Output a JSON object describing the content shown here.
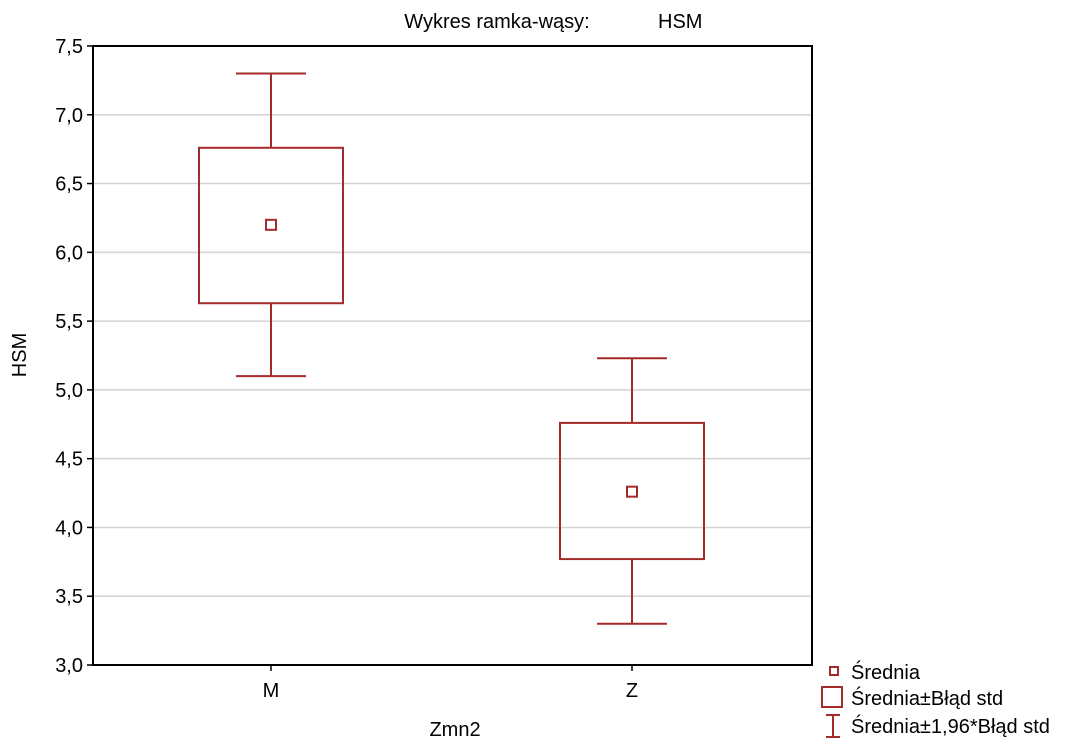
{
  "chart_data": {
    "type": "box",
    "title": "Wykres ramka-wąsy:",
    "variable": "HSM",
    "xlabel": "Zmn2",
    "ylabel": "HSM",
    "ylim": [
      3.0,
      7.5
    ],
    "ytick_labels": [
      "3,0",
      "3,5",
      "4,0",
      "4,5",
      "5,0",
      "5,5",
      "6,0",
      "6,5",
      "7,0",
      "7,5"
    ],
    "ytick_values": [
      3.0,
      3.5,
      4.0,
      4.5,
      5.0,
      5.5,
      6.0,
      6.5,
      7.0,
      7.5
    ],
    "grid": true,
    "legend_position": "bottom-right",
    "series_color": "#a52a2a",
    "categories": [
      "M",
      "Z"
    ],
    "groups": [
      {
        "category": "M",
        "mean": 6.2,
        "box_low": 5.63,
        "box_high": 6.76,
        "whisker_low": 5.1,
        "whisker_high": 7.3
      },
      {
        "category": "Z",
        "mean": 4.26,
        "box_low": 3.77,
        "box_high": 4.76,
        "whisker_low": 3.3,
        "whisker_high": 5.23
      }
    ],
    "legend": [
      {
        "symbol": "mean-marker",
        "label": "Średnia"
      },
      {
        "symbol": "box",
        "label": "Średnia±Błąd std"
      },
      {
        "symbol": "whisker",
        "label": "Średnia±1,96*Błąd std"
      }
    ]
  }
}
